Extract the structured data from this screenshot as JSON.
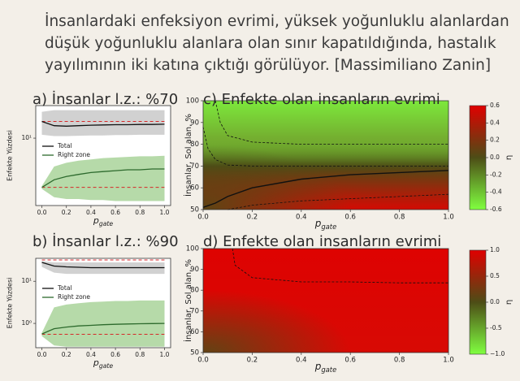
{
  "header": {
    "lines": [
      "İnsanlardaki enfeksiyon evrimi, yüksek yoğunluklu alanlardan",
      "düşük yoğunluklu alanlara olan sınır kapatıldığında, hastalık",
      "yayılımının iki katına çıktığı görülüyor. [Massimiliano Zanin]"
    ]
  },
  "chart_data": [
    {
      "type": "line",
      "title": "a) İnsanlar l.z.: %70",
      "ylabel": "Enfekte Yüzdesi",
      "xlabel": "p",
      "xlabel_sub": "gate",
      "log_y": true,
      "x": [
        0,
        0.1,
        0.2,
        0.3,
        0.4,
        0.5,
        0.6,
        0.7,
        0.8,
        0.9,
        1
      ],
      "xlim": [
        -0.05,
        1.05
      ],
      "xticks": [
        {
          "value": 0,
          "label": "0.0"
        },
        0.2,
        0.4,
        0.6,
        0.8,
        {
          "value": 1,
          "label": "1.0"
        }
      ],
      "ylim": [
        1.5,
        25
      ],
      "yticks": [
        {
          "value": 10,
          "label": "10¹"
        }
      ],
      "ref_lines": [
        16,
        2.5
      ],
      "ref_color": "#d62728",
      "series": [
        {
          "name": "Total",
          "color": "#111111",
          "band_color": "#c9c9c9",
          "values": [
            16,
            14.2,
            14,
            14.2,
            14.4,
            14.5,
            14.6,
            14.6,
            14.7,
            14.7,
            14.8
          ],
          "band_low": [
            11,
            10.6,
            10.6,
            10.7,
            10.8,
            10.8,
            10.9,
            10.9,
            11,
            11,
            11
          ],
          "band_high": [
            21,
            22,
            22,
            22,
            22,
            22,
            22,
            22,
            22,
            22,
            22
          ]
        },
        {
          "name": "Right zone",
          "color": "#2d6a2d",
          "band_color": "#a9d39a",
          "values": [
            2.5,
            3.1,
            3.4,
            3.6,
            3.8,
            3.9,
            4.0,
            4.1,
            4.1,
            4.2,
            4.2
          ],
          "band_low": [
            2.4,
            1.9,
            1.8,
            1.8,
            1.75,
            1.75,
            1.7,
            1.7,
            1.7,
            1.7,
            1.7
          ],
          "band_high": [
            2.6,
            4.5,
            5.0,
            5.3,
            5.5,
            5.7,
            5.8,
            5.9,
            6.0,
            6.0,
            6.1
          ]
        }
      ]
    },
    {
      "type": "line",
      "title": "b) İnsanlar l.z.: %90",
      "ylabel": "Enfekte Yüzdesi",
      "xlabel": "p",
      "xlabel_sub": "gate",
      "log_y": true,
      "x": [
        0,
        0.1,
        0.2,
        0.3,
        0.4,
        0.5,
        0.6,
        0.7,
        0.8,
        0.9,
        1
      ],
      "xlim": [
        -0.05,
        1.05
      ],
      "xticks": [
        {
          "value": 0,
          "label": "0.0"
        },
        0.2,
        0.4,
        0.6,
        0.8,
        {
          "value": 1,
          "label": "1.0"
        }
      ],
      "ylim": [
        0.265,
        35
      ],
      "yticks": [
        {
          "value": 1,
          "label": "10⁰"
        },
        {
          "value": 10,
          "label": "10¹"
        }
      ],
      "ref_lines": [
        32,
        0.55
      ],
      "ref_color": "#d62728",
      "series": [
        {
          "name": "Total",
          "color": "#111111",
          "band_color": "#c9c9c9",
          "values": [
            28,
            23,
            22,
            21.5,
            21,
            21,
            21,
            21,
            21,
            21,
            21
          ],
          "band_low": [
            22,
            16,
            15,
            15,
            15,
            15,
            15,
            15,
            15,
            15,
            15
          ],
          "band_high": [
            30,
            28,
            28,
            28,
            28,
            28,
            28,
            28,
            28,
            28,
            28
          ]
        },
        {
          "name": "Right zone",
          "color": "#2d6a2d",
          "band_color": "#a9d39a",
          "values": [
            0.56,
            0.75,
            0.82,
            0.87,
            0.9,
            0.93,
            0.95,
            0.97,
            0.98,
            0.99,
            1.0
          ],
          "band_low": [
            0.5,
            0.3,
            0.28,
            0.28,
            0.28,
            0.28,
            0.28,
            0.28,
            0.28,
            0.28,
            0.28
          ],
          "band_high": [
            0.6,
            2.4,
            2.8,
            3.0,
            3.2,
            3.3,
            3.4,
            3.4,
            3.5,
            3.5,
            3.5
          ]
        }
      ]
    },
    {
      "type": "heatmap",
      "title": "c) Enfekte olan insanların evrimi",
      "ylabel": "İnsanlar, Sol alan, %",
      "xlabel": "p",
      "xlabel_sub": "gate",
      "colorbar_label": "η",
      "xlim": [
        0,
        1
      ],
      "xticks": [
        {
          "value": 0,
          "label": "0.0"
        },
        0.2,
        0.4,
        0.6,
        0.8,
        {
          "value": 1,
          "label": "1.0"
        }
      ],
      "ylim": [
        50,
        100
      ],
      "yticks": [
        50,
        60,
        70,
        80,
        90,
        100
      ],
      "clim": [
        -0.6,
        0.6
      ],
      "cticks": [
        0.6,
        0.4,
        0.2,
        {
          "value": 0,
          "label": "0.0"
        },
        -0.2,
        -0.4,
        -0.6
      ],
      "colormap": [
        "#e00000",
        "#4d4d16",
        "#80ff40"
      ],
      "field": "green-top",
      "contours": [
        {
          "style": "dashed",
          "x": [
            0.05,
            0.07,
            0.1,
            0.2,
            0.4,
            0.6,
            0.8,
            1.0
          ],
          "y": [
            100,
            90,
            84,
            81,
            80,
            80,
            80,
            80
          ]
        },
        {
          "style": "dashed",
          "x": [
            0.0,
            0.02,
            0.05,
            0.1,
            0.2,
            0.4,
            0.6,
            0.8,
            1.0
          ],
          "y": [
            88,
            78,
            73,
            70.5,
            70,
            70,
            70,
            70,
            70
          ]
        },
        {
          "style": "solid",
          "x": [
            0,
            0.05,
            0.1,
            0.2,
            0.4,
            0.6,
            0.8,
            1.0
          ],
          "y": [
            51,
            53,
            56,
            60,
            64,
            66,
            67,
            68
          ]
        },
        {
          "style": "dashed",
          "x": [
            0.1,
            0.2,
            0.4,
            0.6,
            0.8,
            1.0
          ],
          "y": [
            50,
            52,
            54,
            55,
            56,
            57
          ]
        }
      ]
    },
    {
      "type": "heatmap",
      "title": "d) Enfekte olan insanların evrimi",
      "ylabel": "İnsanlar, Sol alan, %",
      "xlabel": "p",
      "xlabel_sub": "gate",
      "colorbar_label": "η",
      "xlim": [
        0,
        1
      ],
      "xticks": [
        {
          "value": 0,
          "label": "0.0"
        },
        0.2,
        0.4,
        0.6,
        0.8,
        {
          "value": 1,
          "label": "1.0"
        }
      ],
      "ylim": [
        50,
        100
      ],
      "yticks": [
        50,
        60,
        70,
        80,
        90,
        100
      ],
      "clim": [
        -1,
        1
      ],
      "cticks": [
        {
          "value": 1,
          "label": "1.0"
        },
        0.5,
        {
          "value": 0,
          "label": "0.0"
        },
        -0.5,
        {
          "value": -1,
          "label": "−1.0"
        }
      ],
      "colormap": [
        "#e00000",
        "#4d4d16",
        "#80ff40"
      ],
      "field": "red",
      "contours": [
        {
          "style": "dashed",
          "x": [
            0.12,
            0.13,
            0.2,
            0.4,
            0.6,
            0.8,
            1.0
          ],
          "y": [
            100,
            92,
            86,
            84,
            84,
            83.5,
            83.5
          ]
        }
      ]
    }
  ]
}
